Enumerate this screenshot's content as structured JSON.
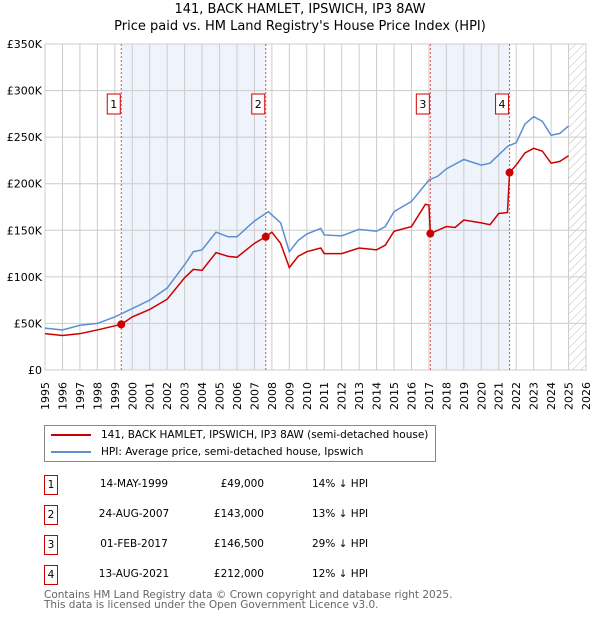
{
  "header": {
    "title": "141, BACK HAMLET, IPSWICH, IP3 8AW",
    "subtitle": "Price paid vs. HM Land Registry's House Price Index (HPI)"
  },
  "chart_data": {
    "type": "line",
    "title": "141, BACK HAMLET, IPSWICH, IP3 8AW",
    "subtitle": "Price paid vs. HM Land Registry's House Price Index (HPI)",
    "xlim": [
      1995,
      2026
    ],
    "ylim": [
      0,
      350000
    ],
    "xticks": [
      "1995",
      "1996",
      "1997",
      "1998",
      "1999",
      "2000",
      "2001",
      "2002",
      "2003",
      "2004",
      "2005",
      "2006",
      "2007",
      "2008",
      "2009",
      "2010",
      "2011",
      "2012",
      "2013",
      "2014",
      "2015",
      "2016",
      "2017",
      "2018",
      "2019",
      "2020",
      "2021",
      "2022",
      "2023",
      "2024",
      "2025",
      "2026"
    ],
    "yticks": [
      {
        "v": 0,
        "label": "£0"
      },
      {
        "v": 50000,
        "label": "£50K"
      },
      {
        "v": 100000,
        "label": "£100K"
      },
      {
        "v": 150000,
        "label": "£150K"
      },
      {
        "v": 200000,
        "label": "£200K"
      },
      {
        "v": 250000,
        "label": "£250K"
      },
      {
        "v": 300000,
        "label": "£300K"
      },
      {
        "v": 350000,
        "label": "£350K"
      }
    ],
    "grid": true,
    "forecast_hatch_from": 2025,
    "series": [
      {
        "name": "141, BACK HAMLET, IPSWICH, IP3 8AW (semi-detached house)",
        "color": "#cc0000",
        "points": [
          [
            1995,
            39000
          ],
          [
            1996,
            37000
          ],
          [
            1997,
            39000
          ],
          [
            1998,
            43000
          ],
          [
            1999.37,
            49000
          ],
          [
            2000,
            57000
          ],
          [
            2001,
            65000
          ],
          [
            2002,
            76000
          ],
          [
            2003,
            99000
          ],
          [
            2003.5,
            108000
          ],
          [
            2004,
            107000
          ],
          [
            2004.8,
            126000
          ],
          [
            2005.5,
            122000
          ],
          [
            2006,
            121000
          ],
          [
            2007,
            136000
          ],
          [
            2007.65,
            143000
          ],
          [
            2008,
            148000
          ],
          [
            2008.5,
            136000
          ],
          [
            2009,
            110000
          ],
          [
            2009.5,
            122000
          ],
          [
            2010,
            127000
          ],
          [
            2010.8,
            131000
          ],
          [
            2011,
            125000
          ],
          [
            2012,
            125000
          ],
          [
            2013,
            131000
          ],
          [
            2014,
            129000
          ],
          [
            2014.5,
            134000
          ],
          [
            2015,
            149000
          ],
          [
            2016,
            154000
          ],
          [
            2016.8,
            178000
          ],
          [
            2017.0,
            177000
          ],
          [
            2017.08,
            146500
          ],
          [
            2018,
            154000
          ],
          [
            2018.5,
            153000
          ],
          [
            2019,
            161000
          ],
          [
            2020,
            158000
          ],
          [
            2020.5,
            156000
          ],
          [
            2021,
            168000
          ],
          [
            2021.5,
            169000
          ],
          [
            2021.62,
            212000
          ],
          [
            2022,
            220000
          ],
          [
            2022.5,
            233000
          ],
          [
            2023,
            238000
          ],
          [
            2023.5,
            235000
          ],
          [
            2024,
            222000
          ],
          [
            2024.5,
            224000
          ],
          [
            2025,
            230000
          ]
        ]
      },
      {
        "name": "HPI: Average price, semi-detached house, Ipswich",
        "color": "#5b8fd0",
        "points": [
          [
            1995,
            45000
          ],
          [
            1996,
            43000
          ],
          [
            1997,
            48000
          ],
          [
            1998,
            50000
          ],
          [
            1999,
            57000
          ],
          [
            2000,
            66000
          ],
          [
            2001,
            75000
          ],
          [
            2002,
            88000
          ],
          [
            2003,
            113000
          ],
          [
            2003.5,
            127000
          ],
          [
            2004,
            129000
          ],
          [
            2004.8,
            148000
          ],
          [
            2005.5,
            143000
          ],
          [
            2006,
            143000
          ],
          [
            2007,
            160000
          ],
          [
            2007.8,
            170000
          ],
          [
            2008.5,
            158000
          ],
          [
            2009,
            127000
          ],
          [
            2009.5,
            139000
          ],
          [
            2010,
            146000
          ],
          [
            2010.8,
            152000
          ],
          [
            2011,
            145000
          ],
          [
            2012,
            144000
          ],
          [
            2013,
            151000
          ],
          [
            2014,
            149000
          ],
          [
            2014.5,
            154000
          ],
          [
            2015,
            170000
          ],
          [
            2016,
            181000
          ],
          [
            2017,
            204000
          ],
          [
            2017.5,
            208000
          ],
          [
            2018,
            216000
          ],
          [
            2019,
            226000
          ],
          [
            2020,
            220000
          ],
          [
            2020.5,
            222000
          ],
          [
            2021,
            231000
          ],
          [
            2021.5,
            240000
          ],
          [
            2022,
            244000
          ],
          [
            2022.5,
            264000
          ],
          [
            2023,
            272000
          ],
          [
            2023.5,
            267000
          ],
          [
            2024,
            252000
          ],
          [
            2024.5,
            254000
          ],
          [
            2025,
            262000
          ]
        ]
      }
    ],
    "sales": [
      {
        "id": "1",
        "x": 1999.37,
        "price": 49000,
        "date": "14-MAY-1999",
        "price_label": "£49,000",
        "hpi": "14% ↓ HPI"
      },
      {
        "id": "2",
        "x": 2007.65,
        "price": 143000,
        "date": "24-AUG-2007",
        "price_label": "£143,000",
        "hpi": "13% ↓ HPI"
      },
      {
        "id": "3",
        "x": 2017.08,
        "price": 146500,
        "date": "01-FEB-2017",
        "price_label": "£146,500",
        "hpi": "29% ↓ HPI"
      },
      {
        "id": "4",
        "x": 2021.62,
        "price": 212000,
        "date": "13-AUG-2021",
        "price_label": "£212,000",
        "hpi": "12% ↓ HPI"
      }
    ],
    "shaded_ranges": [
      [
        1999.37,
        2007.65
      ],
      [
        2017.08,
        2021.62
      ]
    ]
  },
  "legend": {
    "red": "141, BACK HAMLET, IPSWICH, IP3 8AW (semi-detached house)",
    "blue": "HPI: Average price, semi-detached house, Ipswich"
  },
  "footer": {
    "line1": "Contains HM Land Registry data © Crown copyright and database right 2025.",
    "line2": "This data is licensed under the Open Government Licence v3.0."
  }
}
